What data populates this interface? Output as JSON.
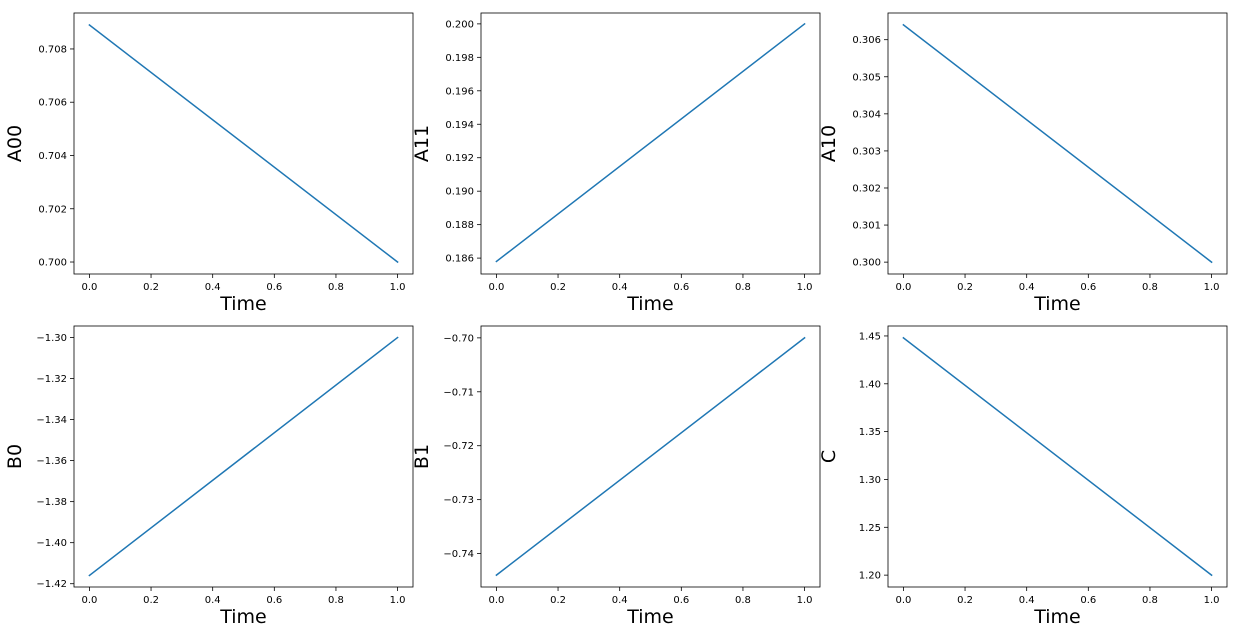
{
  "colors": {
    "line": "#1f77b4",
    "axes": "#000000",
    "background": "#ffffff"
  },
  "chart_data": [
    {
      "type": "line",
      "ylabel": "A00",
      "xlabel": "Time",
      "xlim": [
        -0.05,
        1.05
      ],
      "ylim": [
        0.69955,
        0.70935
      ],
      "x_ticks": [
        "0.0",
        "0.2",
        "0.4",
        "0.6",
        "0.8",
        "1.0"
      ],
      "y_ticks": [
        "0.700",
        "0.702",
        "0.704",
        "0.706",
        "0.708"
      ],
      "grid": false,
      "x": [
        0.0,
        1.0
      ],
      "y": [
        0.7089,
        0.7
      ]
    },
    {
      "type": "line",
      "ylabel": "A11",
      "xlabel": "Time",
      "xlim": [
        -0.05,
        1.05
      ],
      "ylim": [
        0.18505,
        0.20065
      ],
      "x_ticks": [
        "0.0",
        "0.2",
        "0.4",
        "0.6",
        "0.8",
        "1.0"
      ],
      "y_ticks": [
        "0.186",
        "0.188",
        "0.190",
        "0.192",
        "0.194",
        "0.196",
        "0.198",
        "0.200"
      ],
      "grid": false,
      "x": [
        0.0,
        1.0
      ],
      "y": [
        0.1858,
        0.2
      ]
    },
    {
      "type": "line",
      "ylabel": "A10",
      "xlabel": "Time",
      "xlim": [
        -0.05,
        1.05
      ],
      "ylim": [
        0.29968,
        0.30672
      ],
      "x_ticks": [
        "0.0",
        "0.2",
        "0.4",
        "0.6",
        "0.8",
        "1.0"
      ],
      "y_ticks": [
        "0.300",
        "0.301",
        "0.302",
        "0.303",
        "0.304",
        "0.305",
        "0.306"
      ],
      "grid": false,
      "x": [
        0.0,
        1.0
      ],
      "y": [
        0.3064,
        0.3
      ]
    },
    {
      "type": "line",
      "ylabel": "B0",
      "xlabel": "Time",
      "xlim": [
        -0.05,
        1.05
      ],
      "ylim": [
        -1.4216,
        -1.2944
      ],
      "x_ticks": [
        "0.0",
        "0.2",
        "0.4",
        "0.6",
        "0.8",
        "1.0"
      ],
      "y_ticks": [
        "−1.42",
        "−1.40",
        "−1.38",
        "−1.36",
        "−1.34",
        "−1.32",
        "−1.30"
      ],
      "grid": false,
      "x": [
        0.0,
        1.0
      ],
      "y": [
        -1.416,
        -1.3
      ]
    },
    {
      "type": "line",
      "ylabel": "B1",
      "xlabel": "Time",
      "xlim": [
        -0.05,
        1.05
      ],
      "ylim": [
        -0.7462,
        -0.6978
      ],
      "x_ticks": [
        "0.0",
        "0.2",
        "0.4",
        "0.6",
        "0.8",
        "1.0"
      ],
      "y_ticks": [
        "−0.74",
        "−0.73",
        "−0.72",
        "−0.71",
        "−0.70"
      ],
      "grid": false,
      "x": [
        0.0,
        1.0
      ],
      "y": [
        -0.744,
        -0.7
      ]
    },
    {
      "type": "line",
      "ylabel": "C",
      "xlabel": "Time",
      "xlim": [
        -0.05,
        1.05
      ],
      "ylim": [
        1.1876,
        1.4604
      ],
      "x_ticks": [
        "0.0",
        "0.2",
        "0.4",
        "0.6",
        "0.8",
        "1.0"
      ],
      "y_ticks": [
        "1.20",
        "1.25",
        "1.30",
        "1.35",
        "1.40",
        "1.45"
      ],
      "grid": false,
      "x": [
        0.0,
        1.0
      ],
      "y": [
        1.448,
        1.2
      ]
    }
  ]
}
